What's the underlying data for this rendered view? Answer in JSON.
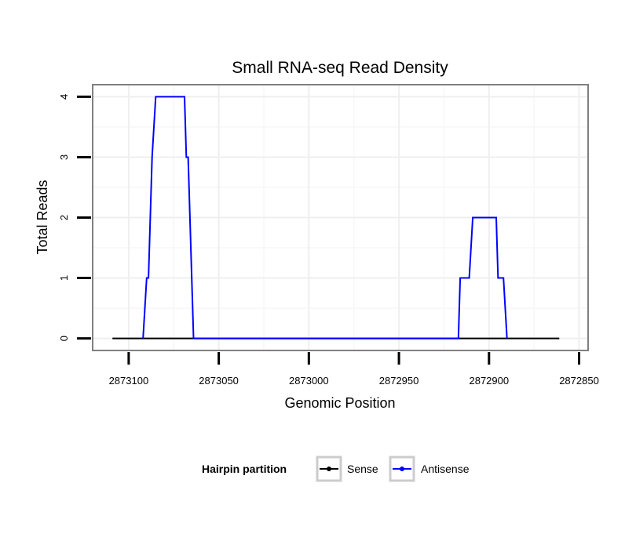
{
  "chart_data": {
    "type": "line",
    "title": "Small RNA-seq Read Density",
    "xlabel": "Genomic Position",
    "ylabel": "Total Reads",
    "x_reversed": true,
    "xlim": [
      2873120,
      2872845
    ],
    "ylim": [
      -0.2,
      4.2
    ],
    "x_ticks": [
      2873100,
      2873050,
      2873000,
      2872950,
      2872900,
      2872850
    ],
    "x_tick_labels": [
      "2873100",
      "2873050",
      "2873000",
      "2872950",
      "2872900",
      "2872850"
    ],
    "y_ticks": [
      0,
      1,
      2,
      3,
      4
    ],
    "y_tick_labels": [
      "0",
      "1",
      "2",
      "3",
      "4"
    ],
    "grid": true,
    "legend": {
      "title": "Hairpin partition",
      "position": "bottom",
      "entries": [
        "Sense",
        "Antisense"
      ]
    },
    "series": [
      {
        "name": "Sense",
        "color": "#000000",
        "x": [
          2873109,
          2872861
        ],
        "y": [
          0,
          0
        ]
      },
      {
        "name": "Antisense",
        "color": "#0000ff",
        "x": [
          2873092,
          2873090,
          2873089,
          2873087,
          2873085,
          2873069,
          2873068,
          2873067,
          2873065,
          2873064,
          2872917,
          2872916,
          2872911,
          2872909,
          2872896,
          2872895,
          2872892,
          2872890
        ],
        "y": [
          0,
          1,
          1,
          3,
          4,
          4,
          3,
          3,
          1,
          0,
          0,
          1,
          1,
          2,
          2,
          1,
          1,
          0
        ]
      }
    ]
  }
}
